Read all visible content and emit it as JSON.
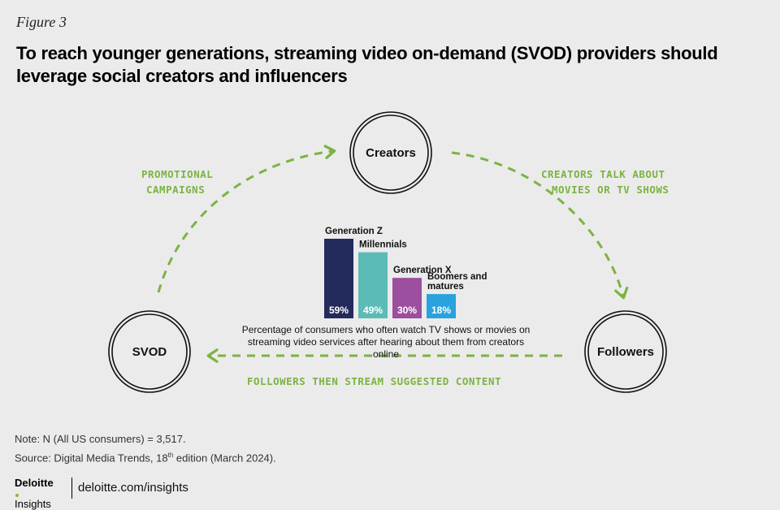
{
  "figure_label": "Figure 3",
  "title": "To reach younger generations, streaming video on-demand (SVOD) providers should leverage social creators and influencers",
  "nodes": {
    "creators": "Creators",
    "followers": "Followers",
    "svod": "SVOD"
  },
  "flows": {
    "svod_to_creators": [
      "PROMOTIONAL",
      "CAMPAIGNS"
    ],
    "creators_to_followers": [
      "CREATORS TALK ABOUT",
      "MOVIES OR TV SHOWS"
    ],
    "followers_to_svod": "FOLLOWERS THEN STREAM SUGGESTED CONTENT"
  },
  "chart_data": {
    "type": "bar",
    "categories": [
      "Generation Z",
      "Millennials",
      "Generation X",
      "Boomers and matures"
    ],
    "values": [
      59,
      49,
      30,
      18
    ],
    "value_labels": [
      "59%",
      "49%",
      "30%",
      "18%"
    ],
    "colors": [
      "#232a5c",
      "#5bbcb7",
      "#9b4f9e",
      "#29a3dd"
    ],
    "caption": "Percentage of consumers who often watch TV shows or movies on streaming video services after hearing about them from creators online"
  },
  "colors": {
    "accent_green": "#7cb342",
    "background": "#ebebeb"
  },
  "note": "Note: N (All US consumers) = 3,517.",
  "source_prefix": "Source: Digital Media Trends, 18",
  "source_sup": "th",
  "source_suffix": " edition (March 2024).",
  "footer": {
    "brand_name": "Deloitte",
    "brand_sub": "Insights",
    "url": "deloitte.com/insights"
  }
}
